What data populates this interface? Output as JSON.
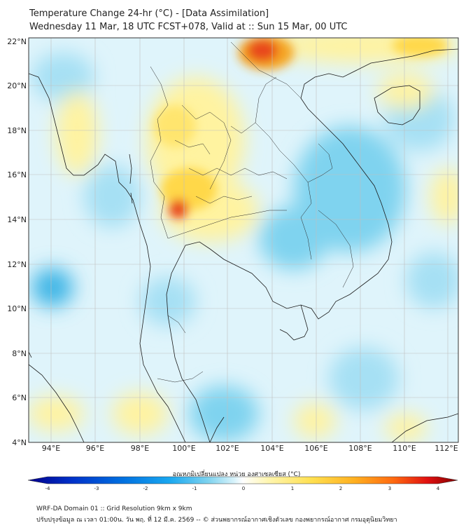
{
  "header": {
    "line1": "Temperature Change 24-hr (°C) - [Data Assimilation]",
    "line2": "Wednesday 11 Mar, 18 UTC FCST+078, Valid at :: Sun 15 Mar, 00 UTC"
  },
  "map": {
    "lat_labels": [
      "22°N",
      "20°N",
      "18°N",
      "16°N",
      "14°N",
      "12°N",
      "10°N",
      "8°N",
      "6°N",
      "4°N"
    ],
    "lon_labels": [
      "94°E",
      "96°E",
      "98°E",
      "100°E",
      "102°E",
      "104°E",
      "106°E",
      "108°E",
      "110°E",
      "112°E"
    ],
    "colors": {
      "water_base": "#dff4fb",
      "cool": "#7fd3ef",
      "cool_strong": "#3fb6e6",
      "warm": "#fff3a0",
      "warm_strong": "#ffd84a",
      "hot": "#f5a623",
      "hot_strong": "#e8471f",
      "border": "#1a1a1a",
      "grid": "#bfbfbf"
    }
  },
  "colorbar": {
    "title": "อุณหภูมิเปลี่ยนแปลง หน่วย องศาเซลเซียส (°C)",
    "ticks": [
      "-4",
      "-3",
      "-2",
      "-1",
      "0",
      "1",
      "2",
      "3",
      "4"
    ],
    "range": [
      -4,
      4
    ],
    "colors": [
      "#00008b",
      "#0030c8",
      "#0070e0",
      "#1aa8f0",
      "#7fd3ef",
      "#d8f3fb",
      "#ffffff",
      "#fff6b0",
      "#ffe050",
      "#ffb020",
      "#ff6a10",
      "#e01010",
      "#800000"
    ]
  },
  "footer": {
    "line1": "WRF-DA Domain 01 :: Grid Resolution 9km x 9km",
    "line2": "ปรับปรุงข้อมูล ณ เวลา 01:00น. วัน พฤ. ที่ 12 มี.ค. 2569 -- © ส่วนพยากรณ์อากาศเชิงตัวเลข กองพยากรณ์อากาศ กรมอุตุนิยมวิทยา"
  }
}
